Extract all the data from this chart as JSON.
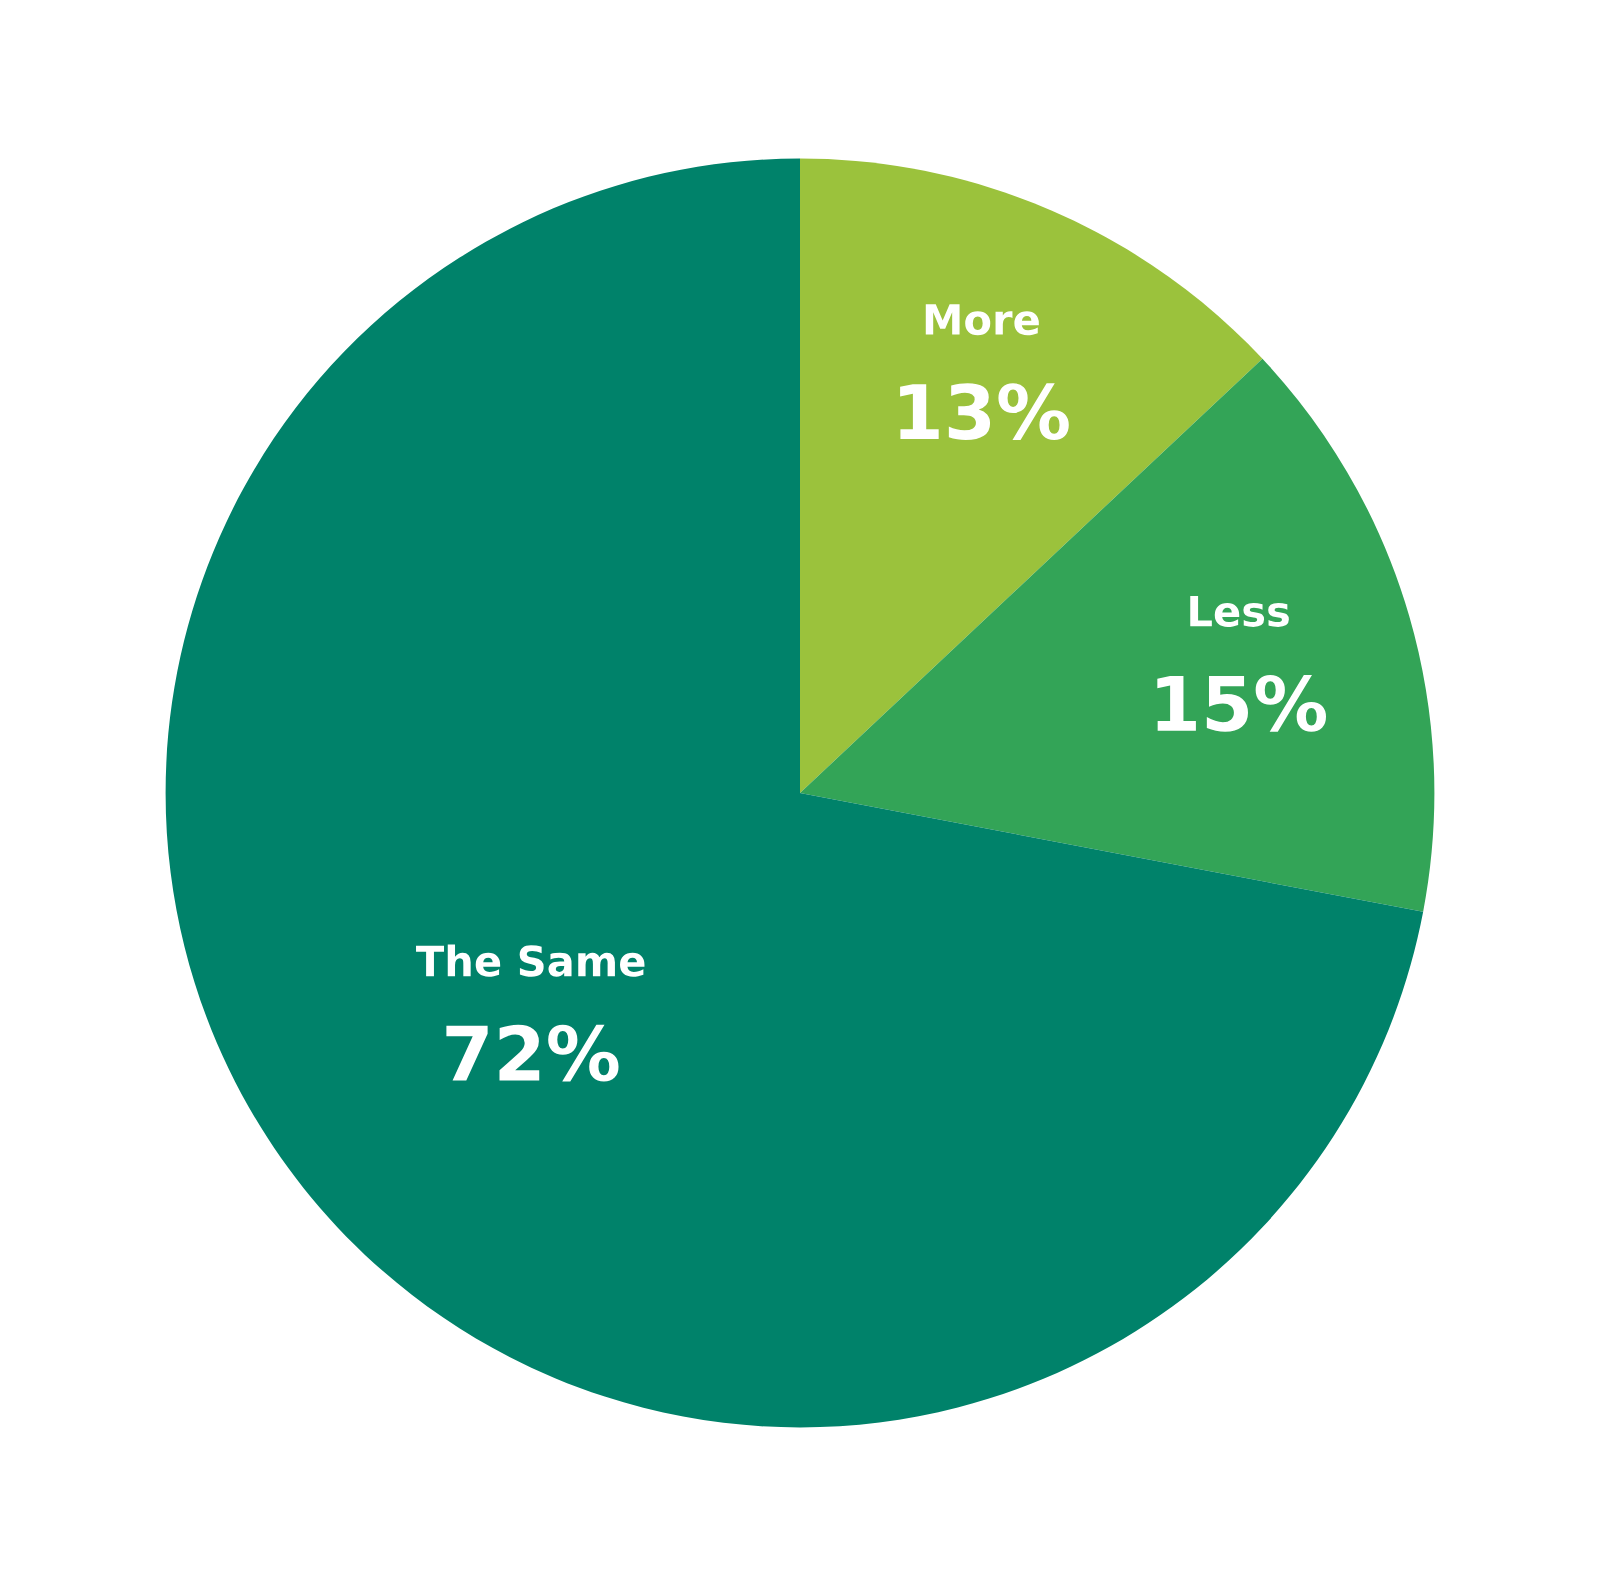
{
  "chart_data": {
    "type": "pie",
    "categories": [
      "More",
      "Less",
      "The Same"
    ],
    "values": [
      13,
      15,
      72
    ],
    "colors": [
      "#9bc23c",
      "#33a457",
      "#00826a"
    ],
    "value_labels": [
      "13%",
      "15%",
      "72%"
    ]
  }
}
